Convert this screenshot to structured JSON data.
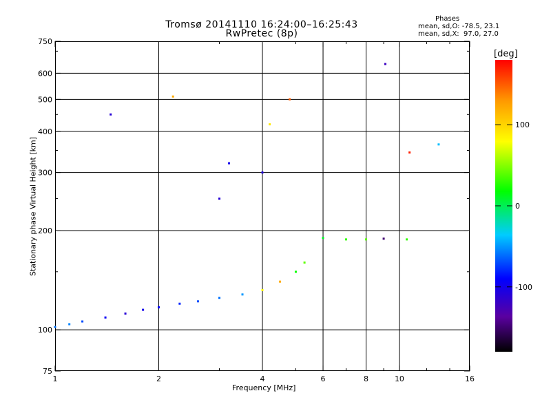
{
  "chart_data": {
    "type": "scatter",
    "title": "Tromsø 20141110 16:24:00–16:25:43",
    "subtitle": "RwPretec (8p)",
    "phase_stats": {
      "title": "Phases",
      "o_line": "mean, sd,O: -78.5, 23.1",
      "x_line": "mean, sd,X:  97.0, 27.0"
    },
    "xlabel": "Frequency [MHz]",
    "ylabel": "Stationary phase Virtual Height [km]",
    "x_scale": "log",
    "y_scale": "log",
    "xlim": [
      1,
      16
    ],
    "ylim": [
      75,
      750
    ],
    "x_ticks": [
      1,
      2,
      4,
      6,
      8,
      10,
      16
    ],
    "x_tick_labels": [
      "1",
      "2",
      "4",
      "6",
      "8",
      "10",
      "16"
    ],
    "y_ticks": [
      75,
      100,
      200,
      300,
      400,
      500,
      600,
      750
    ],
    "y_tick_labels": [
      "75",
      "100",
      "200",
      "300",
      "400",
      "500",
      "600",
      "750"
    ],
    "x_gridlines": [
      2,
      4,
      6,
      8,
      10
    ],
    "y_gridlines": [
      100,
      200,
      300,
      400,
      500,
      600
    ],
    "colorbar": {
      "label": "[deg]",
      "range": [
        -180,
        180
      ],
      "ticks": [
        100,
        0,
        -100
      ],
      "tick_labels": [
        "100",
        "0",
        "-100"
      ]
    },
    "series": [
      {
        "marker": "dots",
        "points_sample": [
          {
            "x": 1.0,
            "y": 102,
            "phase": -60
          },
          {
            "x": 1.1,
            "y": 104,
            "phase": -55
          },
          {
            "x": 1.2,
            "y": 106,
            "phase": -70
          },
          {
            "x": 1.4,
            "y": 109,
            "phase": -95
          },
          {
            "x": 1.6,
            "y": 112,
            "phase": -110
          },
          {
            "x": 1.8,
            "y": 115,
            "phase": -100
          },
          {
            "x": 2.0,
            "y": 117,
            "phase": -90
          },
          {
            "x": 2.3,
            "y": 120,
            "phase": -80
          },
          {
            "x": 2.6,
            "y": 122,
            "phase": -70
          },
          {
            "x": 3.0,
            "y": 125,
            "phase": -60
          },
          {
            "x": 3.5,
            "y": 128,
            "phase": -50
          },
          {
            "x": 4.0,
            "y": 132,
            "phase": 80
          },
          {
            "x": 4.5,
            "y": 140,
            "phase": 120
          },
          {
            "x": 5.0,
            "y": 150,
            "phase": 20
          },
          {
            "x": 5.3,
            "y": 160,
            "phase": 40
          },
          {
            "x": 6.0,
            "y": 190,
            "phase": 10
          },
          {
            "x": 7.0,
            "y": 188,
            "phase": 30
          },
          {
            "x": 8.0,
            "y": 188,
            "phase": 40
          },
          {
            "x": 9.0,
            "y": 189,
            "phase": -150
          },
          {
            "x": 10.5,
            "y": 188,
            "phase": 30
          },
          {
            "x": 3.0,
            "y": 250,
            "phase": -110
          },
          {
            "x": 3.2,
            "y": 320,
            "phase": -100
          },
          {
            "x": 4.0,
            "y": 300,
            "phase": -105
          },
          {
            "x": 4.2,
            "y": 420,
            "phase": 90
          },
          {
            "x": 4.8,
            "y": 500,
            "phase": 150
          },
          {
            "x": 9.1,
            "y": 640,
            "phase": -120
          },
          {
            "x": 10.7,
            "y": 345,
            "phase": 170
          },
          {
            "x": 13.0,
            "y": 365,
            "phase": -40
          },
          {
            "x": 1.45,
            "y": 450,
            "phase": -110
          },
          {
            "x": 2.2,
            "y": 510,
            "phase": 120
          }
        ]
      }
    ]
  }
}
